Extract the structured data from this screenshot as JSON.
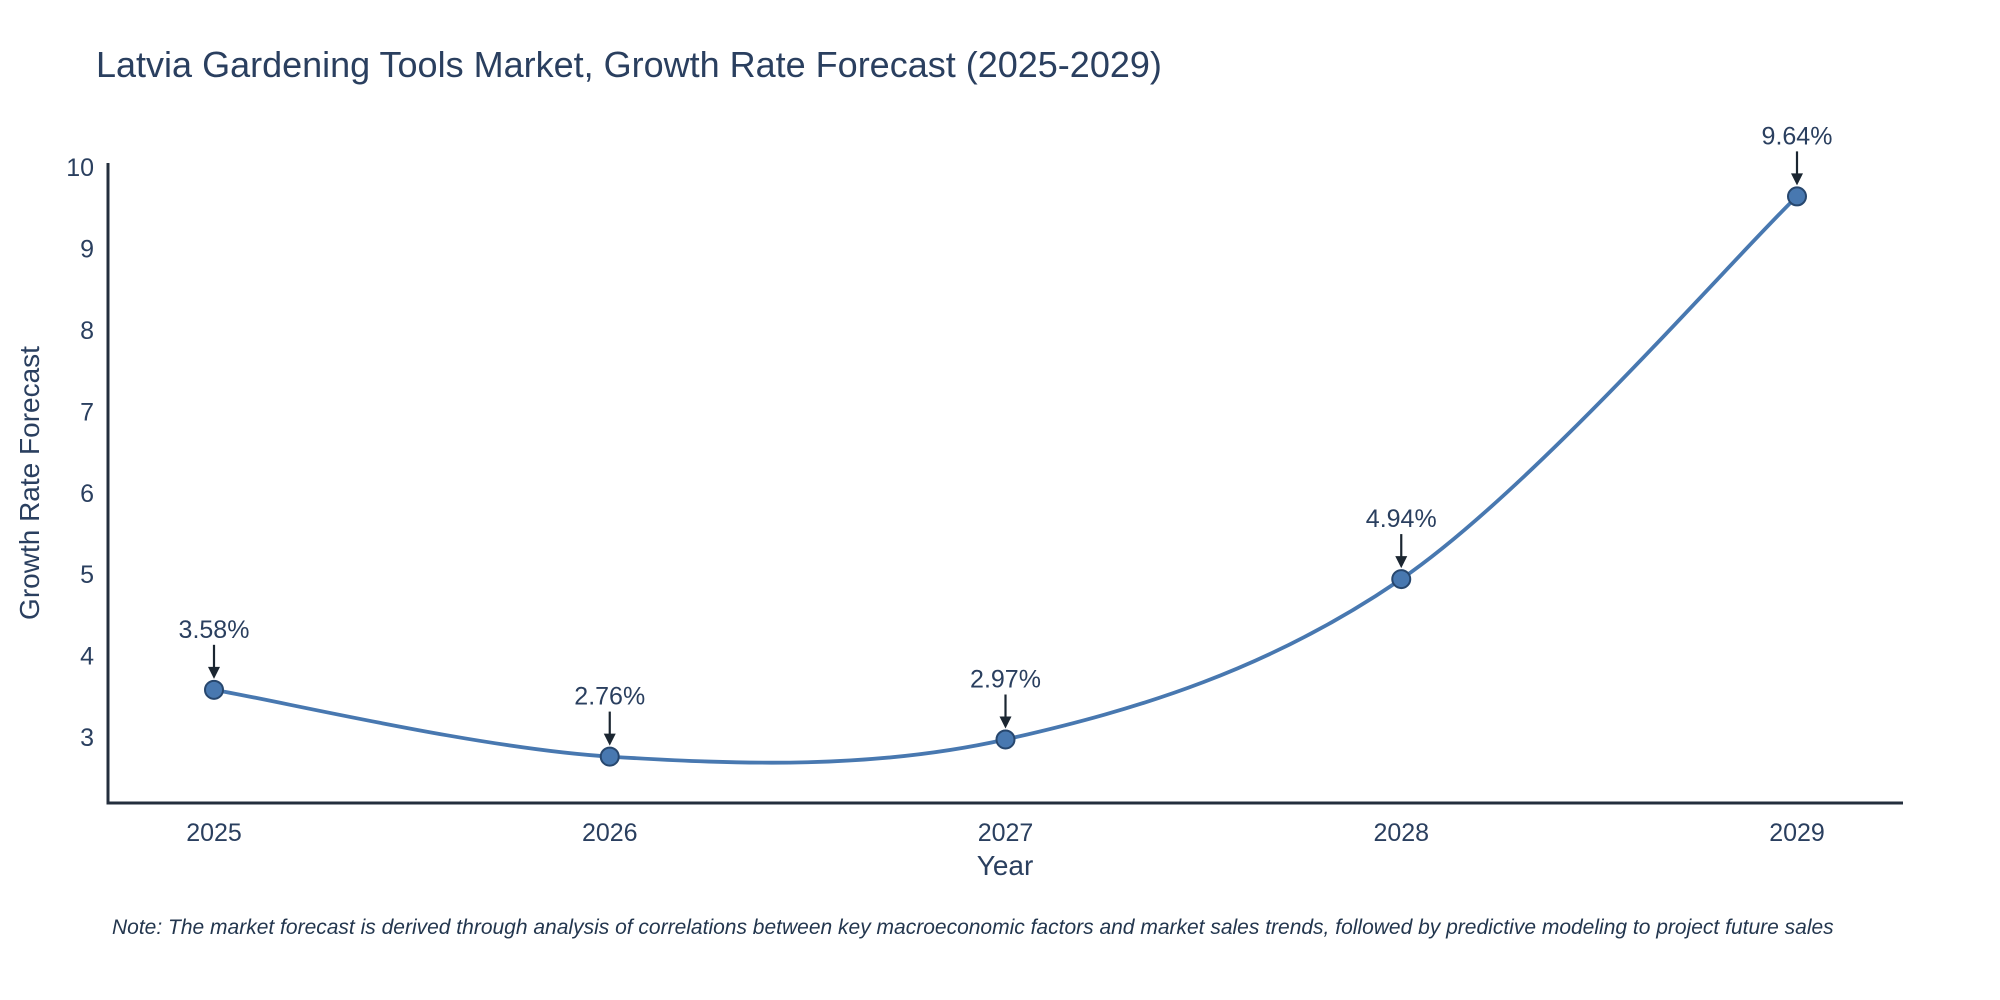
{
  "figure": {
    "background": "#ffffff"
  },
  "chart_data": {
    "type": "line",
    "title": "Latvia Gardening Tools Market, Growth Rate Forecast (2025-2029)",
    "xlabel": "Year",
    "ylabel": "Growth Rate Forecast",
    "categories": [
      "2025",
      "2026",
      "2027",
      "2028",
      "2029"
    ],
    "series": [
      {
        "name": "Growth Rate Forecast",
        "values": [
          3.58,
          2.76,
          2.97,
          4.94,
          9.64
        ],
        "point_labels": [
          "3.58%",
          "2.76%",
          "2.97%",
          "4.94%",
          "9.64%"
        ]
      }
    ],
    "line_shape": "spline",
    "markers": true,
    "annotations_with_arrows": true,
    "ylim": [
      2.19,
      10.05
    ],
    "yticks": [
      3,
      4,
      5,
      6,
      7,
      8,
      9,
      10
    ],
    "grid": false,
    "legend_position": "none",
    "colors": {
      "line": "#4878b0",
      "marker_fill": "#4878b0",
      "marker_edge": "#27476e",
      "axis": "#242f3d",
      "text": "#2a3f5f",
      "arrow": "#1b2631",
      "background": "#ffffff"
    }
  },
  "note": {
    "text": "Note: The market forecast is derived through analysis of correlations between key macroeconomic factors and market sales trends, followed by predictive modeling to project future sales"
  }
}
